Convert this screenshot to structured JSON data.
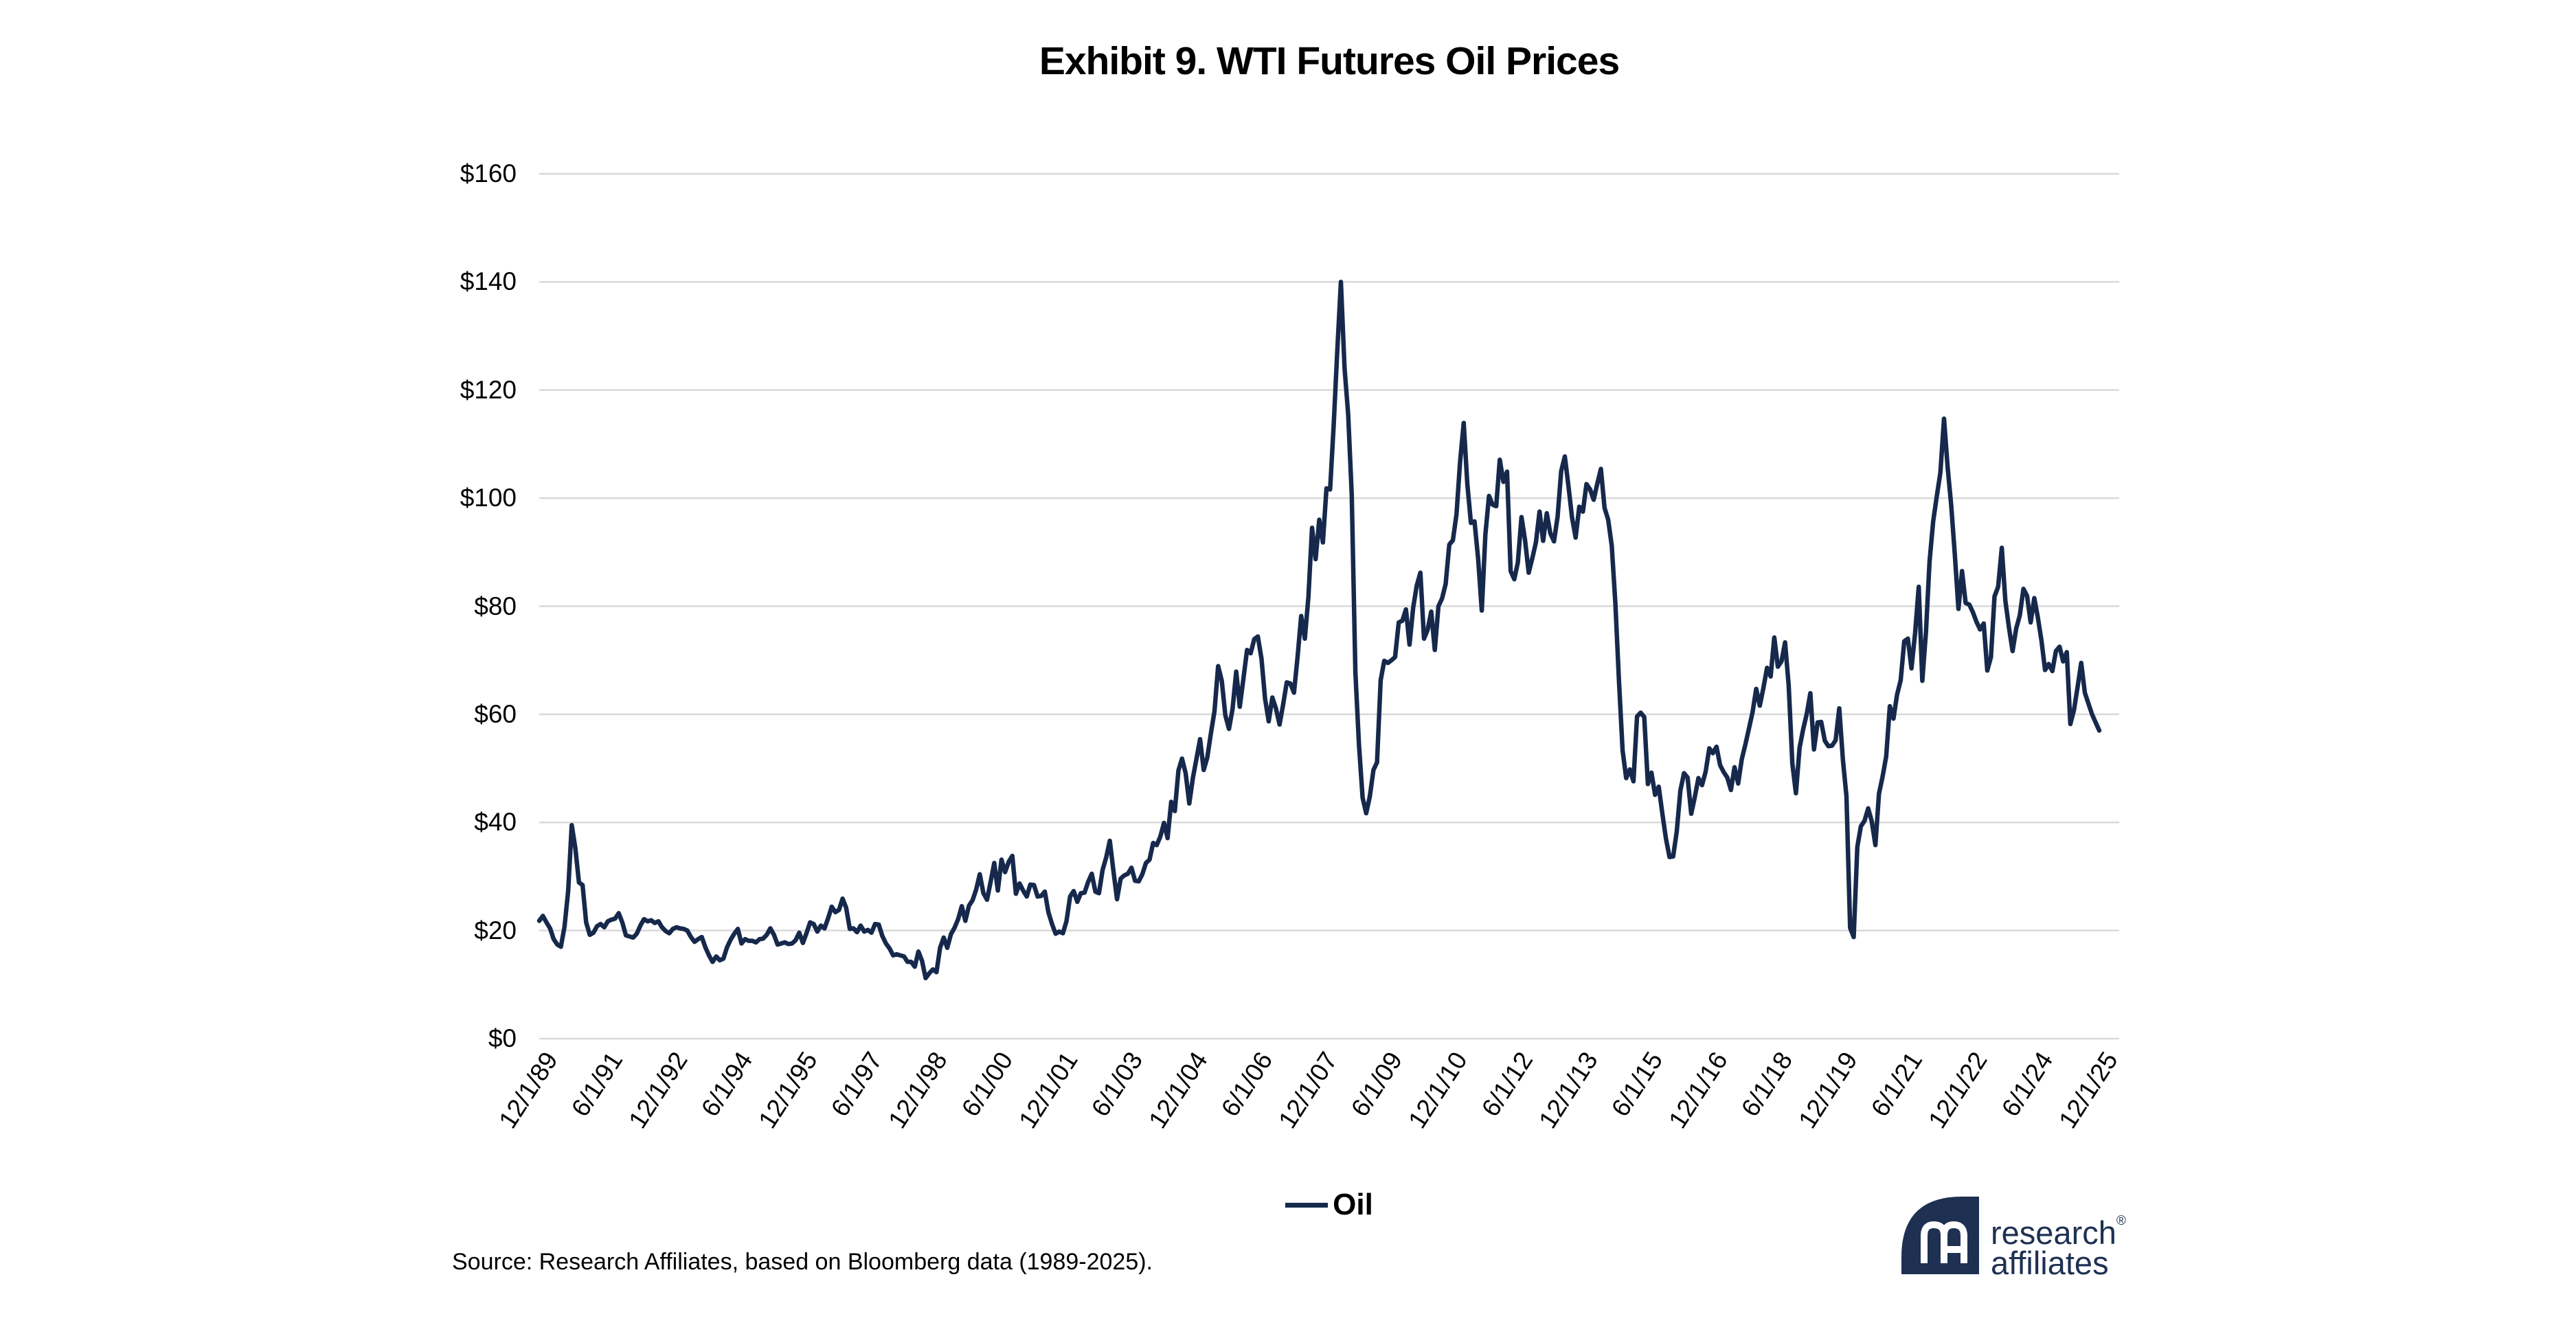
{
  "title": "Exhibit 9. WTI Futures Oil Prices",
  "colors": {
    "line": "#16294C",
    "grid": "#D9D9D9",
    "text": "#000000",
    "logo_navy": "#1E3153"
  },
  "legend": {
    "label": "Oil"
  },
  "source": {
    "text": "Source: Research Affiliates, based on Bloomberg data (1989-2025)."
  },
  "logo": {
    "line1": "research",
    "registered": "®",
    "line2": "affiliates"
  },
  "chart_data": {
    "type": "line",
    "title": "Exhibit 9. WTI Futures Oil Prices",
    "xlabel": "",
    "ylabel": "",
    "ylim": [
      0,
      160
    ],
    "ytick_step": 20,
    "y_tick_labels_top_to_bottom": [
      "$160",
      "$140",
      "$120",
      "$100",
      "$80",
      "$60",
      "$40",
      "$20",
      "$0"
    ],
    "grid": "horizontal",
    "legend_position": "bottom",
    "x_start_label": "12/1/89",
    "x_end_label": "12/1/25",
    "x_tick_interval_points": 18,
    "x_tick_labels": [
      "12/1/89",
      "6/1/91",
      "12/1/92",
      "6/1/94",
      "12/1/95",
      "6/1/97",
      "12/1/98",
      "6/1/00",
      "12/1/01",
      "6/1/03",
      "12/1/04",
      "6/1/06",
      "12/1/07",
      "6/1/09",
      "12/1/10",
      "6/1/12",
      "12/1/13",
      "6/1/15",
      "12/1/16",
      "6/1/18",
      "12/1/19",
      "6/1/21",
      "12/1/22",
      "6/1/24",
      "12/1/25"
    ],
    "series": [
      {
        "name": "Oil",
        "frequency": "monthly",
        "start": "12/1/1989",
        "end": "12/1/2025",
        "values": [
          21.8,
          22.7,
          21.5,
          20.4,
          18.4,
          17.4,
          17.0,
          20.7,
          27.3,
          39.5,
          35.2,
          28.9,
          28.4,
          21.5,
          19.2,
          19.6,
          20.8,
          21.2,
          20.6,
          21.7,
          22.0,
          22.2,
          23.2,
          21.5,
          19.1,
          18.9,
          18.7,
          19.4,
          20.9,
          22.1,
          21.7,
          21.9,
          21.4,
          21.7,
          20.6,
          19.9,
          19.5,
          20.3,
          20.6,
          20.4,
          20.3,
          20.0,
          18.8,
          17.9,
          18.4,
          18.8,
          16.9,
          15.4,
          14.2,
          15.2,
          14.5,
          14.8,
          16.9,
          18.3,
          19.4,
          20.3,
          17.6,
          18.4,
          18.1,
          18.1,
          17.8,
          18.4,
          18.5,
          19.2,
          20.4,
          19.2,
          17.4,
          17.6,
          17.8,
          17.5,
          17.6,
          18.2,
          19.6,
          17.7,
          19.5,
          21.5,
          21.2,
          19.8,
          20.9,
          20.4,
          22.3,
          24.4,
          23.4,
          23.8,
          25.9,
          24.2,
          20.3,
          20.4,
          19.7,
          20.9,
          19.8,
          20.1,
          19.6,
          21.2,
          21.1,
          19.0,
          17.6,
          16.7,
          15.4,
          15.6,
          15.4,
          15.2,
          14.2,
          14.2,
          13.3,
          16.1,
          14.4,
          11.2,
          12.1,
          12.8,
          12.3,
          16.8,
          18.7,
          16.8,
          19.3,
          20.5,
          22.1,
          24.5,
          21.8,
          24.6,
          25.6,
          27.6,
          30.4,
          26.9,
          25.7,
          29.0,
          32.5,
          27.4,
          33.1,
          30.8,
          32.7,
          33.8,
          26.8,
          28.7,
          27.4,
          26.3,
          28.5,
          28.4,
          26.3,
          26.4,
          27.2,
          23.4,
          21.2,
          19.4,
          19.8,
          19.5,
          21.7,
          26.3,
          27.3,
          25.3,
          26.9,
          27.0,
          29.0,
          30.5,
          27.2,
          26.9,
          31.2,
          33.5,
          36.6,
          31.0,
          25.8,
          29.6,
          30.2,
          30.5,
          31.6,
          29.2,
          29.1,
          30.4,
          32.5,
          33.1,
          36.2,
          35.8,
          37.4,
          39.9,
          37.1,
          43.8,
          42.1,
          49.6,
          51.8,
          49.1,
          43.5,
          48.2,
          51.8,
          55.4,
          49.7,
          52.0,
          56.5,
          60.6,
          68.9,
          66.2,
          59.8,
          57.3,
          61.0,
          67.9,
          61.4,
          66.6,
          71.9,
          71.3,
          73.9,
          74.4,
          70.3,
          62.9,
          58.7,
          63.1,
          61.1,
          58.1,
          61.8,
          65.9,
          65.7,
          64.0,
          70.7,
          78.2,
          74.0,
          81.7,
          94.5,
          88.7,
          96.0,
          91.8,
          101.8,
          101.6,
          113.5,
          127.4,
          140.0,
          124.1,
          115.5,
          100.6,
          67.8,
          54.4,
          44.6,
          41.7,
          44.8,
          49.7,
          51.1,
          66.3,
          69.9,
          69.5,
          70.0,
          70.6,
          77.0,
          77.3,
          79.4,
          72.9,
          79.7,
          83.8,
          86.2,
          74.0,
          75.6,
          79.0,
          71.9,
          80.0,
          81.4,
          84.1,
          91.4,
          92.2,
          97.0,
          106.7,
          113.9,
          102.7,
          95.4,
          95.7,
          88.8,
          79.2,
          93.2,
          100.4,
          98.8,
          98.5,
          107.1,
          103.0,
          104.9,
          86.5,
          85.0,
          88.1,
          96.5,
          92.2,
          86.2,
          88.9,
          91.8,
          97.5,
          92.1,
          97.2,
          93.5,
          92.0,
          96.6,
          105.0,
          107.7,
          102.3,
          96.4,
          92.7,
          98.4,
          97.5,
          102.6,
          101.6,
          99.7,
          102.7,
          105.4,
          98.2,
          96.0,
          91.2,
          80.5,
          66.2,
          53.3,
          48.2,
          49.8,
          47.6,
          59.6,
          60.3,
          59.5,
          47.1,
          49.2,
          45.1,
          46.6,
          41.7,
          37.0,
          33.6,
          33.7,
          38.3,
          45.9,
          49.1,
          48.3,
          41.6,
          44.7,
          48.2,
          46.9,
          49.4,
          53.7,
          52.8,
          54.0,
          50.6,
          49.3,
          48.3,
          46.0,
          50.2,
          47.2,
          51.7,
          54.4,
          57.4,
          60.4,
          64.7,
          61.6,
          64.9,
          68.6,
          67.0,
          74.2,
          68.8,
          69.8,
          73.3,
          65.3,
          50.9,
          45.4,
          53.8,
          57.2,
          60.1,
          63.9,
          53.5,
          58.5,
          58.6,
          55.1,
          54.1,
          54.2,
          55.2,
          61.1,
          51.6,
          44.8,
          20.5,
          18.8,
          35.5,
          39.3,
          40.3,
          42.6,
          40.2,
          35.8,
          45.3,
          48.5,
          52.2,
          61.5,
          59.2,
          63.6,
          66.3,
          73.5,
          74.0,
          68.5,
          75.0,
          83.6,
          66.2,
          75.2,
          88.2,
          95.7,
          100.3,
          104.7,
          114.7,
          105.8,
          98.6,
          89.6,
          79.5,
          86.5,
          80.6,
          80.3,
          78.9,
          77.1,
          75.7,
          76.8,
          68.1,
          70.6,
          81.8,
          83.6,
          90.8,
          81.0,
          76.0,
          71.7,
          75.9,
          78.3,
          83.2,
          81.9,
          77.0,
          81.5,
          77.9,
          73.6,
          68.2,
          69.3,
          68.0,
          71.7,
          72.5,
          69.8,
          71.5,
          58.2,
          60.8,
          65.1,
          69.5,
          64.0,
          62.0,
          60.0,
          58.5,
          57.0
        ]
      }
    ]
  }
}
